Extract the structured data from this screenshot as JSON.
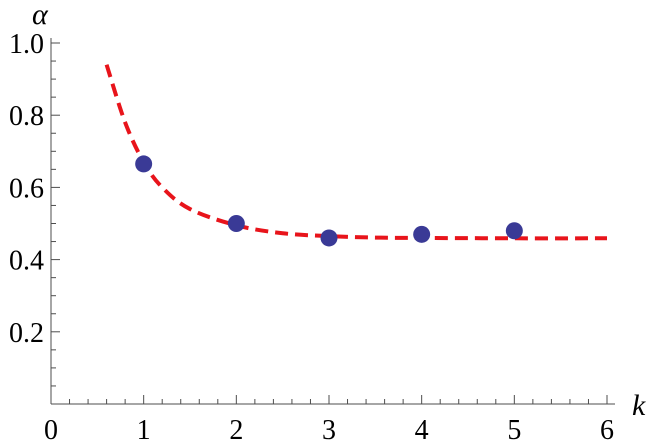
{
  "chart_data": {
    "type": "scatter",
    "title": "",
    "xlabel": "k",
    "ylabel": "α",
    "xlim": [
      0,
      6
    ],
    "ylim": [
      0,
      1.0
    ],
    "x_ticks": [
      "0",
      "1",
      "2",
      "3",
      "4",
      "5",
      "6"
    ],
    "y_ticks": [
      "0.2",
      "0.4",
      "0.6",
      "0.8",
      "1.0"
    ],
    "grid": false,
    "legend": "none",
    "series": [
      {
        "kind": "points",
        "color": "#3a3a96",
        "x": [
          1,
          2,
          3,
          4,
          5
        ],
        "y": [
          0.665,
          0.5,
          0.46,
          0.47,
          0.48
        ]
      },
      {
        "kind": "fit-curve",
        "style": "dashed",
        "color": "#e8141b",
        "x": [
          0.6,
          0.8,
          1.0,
          1.2,
          1.5,
          2.0,
          2.5,
          3.0,
          3.5,
          4.0,
          5.0,
          6.0
        ],
        "y": [
          0.94,
          0.78,
          0.67,
          0.6,
          0.54,
          0.495,
          0.473,
          0.465,
          0.461,
          0.46,
          0.459,
          0.459
        ]
      }
    ]
  }
}
